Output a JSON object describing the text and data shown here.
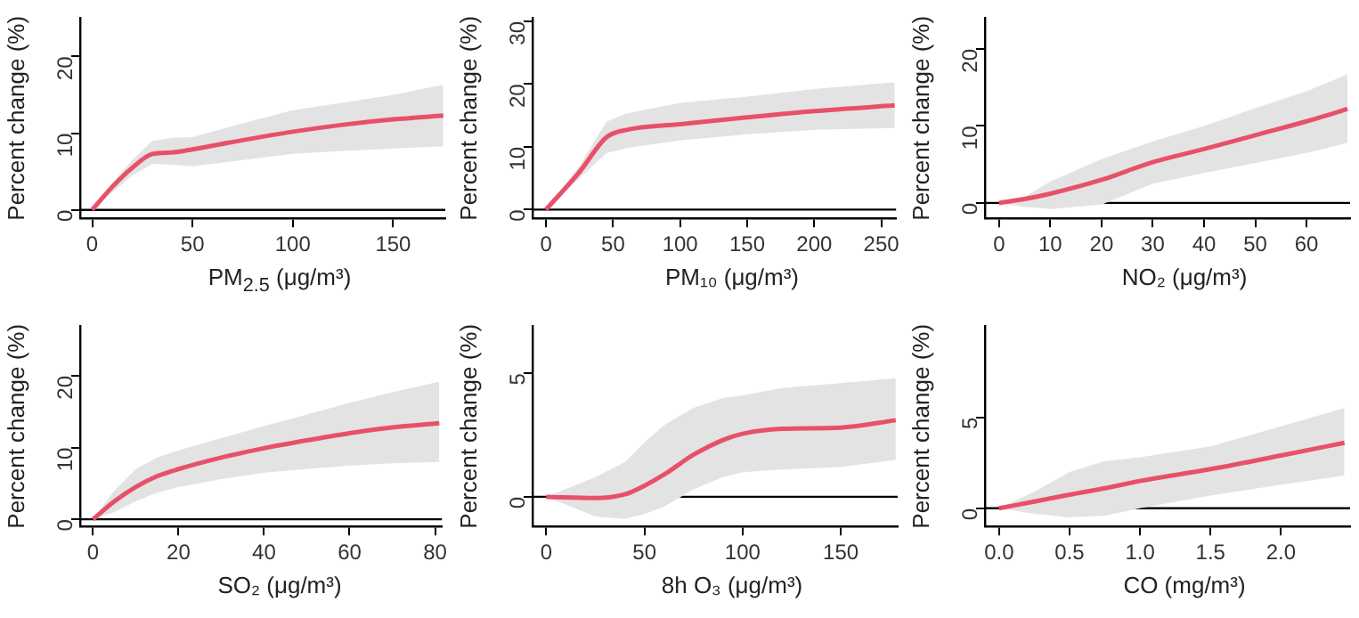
{
  "chart_data": [
    {
      "type": "line",
      "xlabel": "PM$_{2.5}$ (μg/m³)",
      "ylabel": "Percent change (%)",
      "xlim": [
        -6,
        176
      ],
      "xticks": [
        0,
        50,
        100,
        150
      ],
      "ylim": [
        -1.1,
        25
      ],
      "yticks": [
        0,
        10,
        20
      ],
      "grid": false,
      "legend": false,
      "ref_lines": [
        {
          "axis": "y",
          "value": 0,
          "color": "#000000"
        }
      ],
      "x": [
        0,
        10,
        20,
        30,
        40,
        50,
        75,
        100,
        125,
        150,
        175
      ],
      "series": [
        {
          "color": "#e8506a",
          "values": [
            0,
            3,
            5.5,
            7.3,
            7.5,
            7.9,
            9.1,
            10.2,
            11.1,
            11.8,
            12.3
          ],
          "lower": [
            0,
            2.3,
            4.5,
            6,
            5.9,
            5.7,
            6.5,
            7.3,
            7.7,
            8,
            8.3
          ],
          "upper": [
            0,
            3.5,
            6.5,
            9,
            9.4,
            9.5,
            11.3,
            13,
            14,
            15,
            16.3
          ]
        }
      ]
    },
    {
      "type": "line",
      "xlabel": "PM₁₀ (μg/m³)",
      "ylabel": "Percent change (%)",
      "xlim": [
        -10,
        261
      ],
      "xticks": [
        0,
        50,
        100,
        150,
        200,
        250
      ],
      "ylim": [
        -1.4,
        30.5
      ],
      "yticks": [
        0,
        10,
        20,
        30
      ],
      "grid": false,
      "legend": false,
      "ref_lines": [
        {
          "axis": "y",
          "value": 0,
          "color": "#000000"
        }
      ],
      "x": [
        0,
        25,
        45,
        60,
        100,
        150,
        200,
        260
      ],
      "series": [
        {
          "color": "#e8506a",
          "values": [
            0,
            6,
            11.5,
            12.7,
            13.6,
            14.7,
            15.7,
            16.6
          ],
          "lower": [
            0,
            5,
            9,
            9.8,
            11,
            12,
            12.7,
            13
          ],
          "upper": [
            0,
            7,
            14,
            15.3,
            17,
            18,
            19.2,
            20.3
          ]
        }
      ]
    },
    {
      "type": "line",
      "xlabel": "NO₂ (μg/m³)",
      "ylabel": "Percent change (%)",
      "xlim": [
        -2.75,
        68.5
      ],
      "xticks": [
        0,
        10,
        20,
        30,
        40,
        50,
        60
      ],
      "ylim": [
        -2,
        24
      ],
      "yticks": [
        0,
        10,
        20
      ],
      "grid": false,
      "legend": false,
      "ref_lines": [
        {
          "axis": "y",
          "value": 0,
          "color": "#000000"
        }
      ],
      "x": [
        0,
        5,
        10,
        20,
        30,
        40,
        50,
        60,
        68
      ],
      "series": [
        {
          "color": "#e8506a",
          "values": [
            0,
            0.5,
            1.2,
            3,
            5.3,
            7,
            8.8,
            10.6,
            12.2
          ],
          "lower": [
            0,
            -0.5,
            -0.8,
            -0.2,
            2.5,
            3.9,
            5.2,
            6.5,
            7.8
          ],
          "upper": [
            0,
            0.8,
            2.8,
            5.7,
            8,
            10,
            12.3,
            14.5,
            16.7
          ]
        }
      ]
    },
    {
      "type": "line",
      "xlabel": "SO₂ (μg/m³)",
      "ylabel": "Percent change (%)",
      "xlim": [
        -3,
        81.6
      ],
      "xticks": [
        0,
        20,
        40,
        60,
        80
      ],
      "ylim": [
        -1,
        26.9
      ],
      "yticks": [
        0,
        10,
        20
      ],
      "grid": false,
      "legend": false,
      "ref_lines": [
        {
          "axis": "y",
          "value": 0,
          "color": "#000000"
        }
      ],
      "x": [
        0,
        5,
        10,
        15,
        20,
        30,
        40,
        50,
        60,
        70,
        81
      ],
      "series": [
        {
          "color": "#e8506a",
          "values": [
            0,
            2.5,
            4.5,
            6,
            7,
            8.6,
            9.9,
            11,
            12,
            12.8,
            13.4
          ],
          "lower": [
            0,
            1,
            2.5,
            3.7,
            4.5,
            5.6,
            6.5,
            7,
            7.5,
            7.8,
            8
          ],
          "upper": [
            0,
            4,
            7,
            8.6,
            9.6,
            11.3,
            13,
            14.6,
            16.2,
            17.7,
            19.2
          ]
        }
      ]
    },
    {
      "type": "line",
      "xlabel": "8h O₃ (μg/m³)",
      "ylabel": "Percent change (%)",
      "xlim": [
        -7,
        179
      ],
      "xticks": [
        0,
        50,
        100,
        150
      ],
      "ylim": [
        -1.2,
        6.9
      ],
      "yticks": [
        0,
        5
      ],
      "grid": false,
      "legend": false,
      "ref_lines": [
        {
          "axis": "y",
          "value": 0,
          "color": "#000000"
        }
      ],
      "x": [
        0,
        25,
        40,
        50,
        60,
        75,
        90,
        100,
        120,
        150,
        178
      ],
      "series": [
        {
          "color": "#e8506a",
          "values": [
            0,
            -0.05,
            0.1,
            0.45,
            0.9,
            1.7,
            2.3,
            2.55,
            2.75,
            2.8,
            3.1
          ],
          "lower": [
            0,
            -0.8,
            -0.9,
            -0.7,
            -0.4,
            0.3,
            0.8,
            1,
            1.1,
            1.2,
            1.5
          ],
          "upper": [
            0,
            0.8,
            1.4,
            2.2,
            2.9,
            3.6,
            4,
            4.1,
            4.4,
            4.6,
            4.8
          ]
        }
      ]
    },
    {
      "type": "line",
      "xlabel": "CO (mg/m³)",
      "ylabel": "Percent change (%)",
      "xlim": [
        -0.1,
        2.49
      ],
      "xticks": [
        {
          "value": 0,
          "label": "0.0"
        },
        {
          "value": 0.5,
          "label": "0.5"
        },
        {
          "value": 1,
          "label": "1.0"
        },
        {
          "value": 1.5,
          "label": "1.5"
        },
        {
          "value": 2,
          "label": "2.0"
        }
      ],
      "ylim": [
        -1,
        10
      ],
      "yticks": [
        0,
        5
      ],
      "grid": false,
      "legend": false,
      "ref_lines": [
        {
          "axis": "y",
          "value": 0,
          "color": "#000000"
        }
      ],
      "x": [
        0,
        0.25,
        0.5,
        0.75,
        1,
        1.5,
        2,
        2.45
      ],
      "series": [
        {
          "color": "#e8506a",
          "values": [
            0,
            0.37,
            0.75,
            1.1,
            1.5,
            2.15,
            2.9,
            3.6
          ],
          "lower": [
            0,
            -0.3,
            -0.5,
            -0.4,
            0,
            0.7,
            1.3,
            1.8
          ],
          "upper": [
            0,
            0.9,
            2,
            2.6,
            2.8,
            3.4,
            4.5,
            5.5
          ]
        }
      ]
    }
  ]
}
